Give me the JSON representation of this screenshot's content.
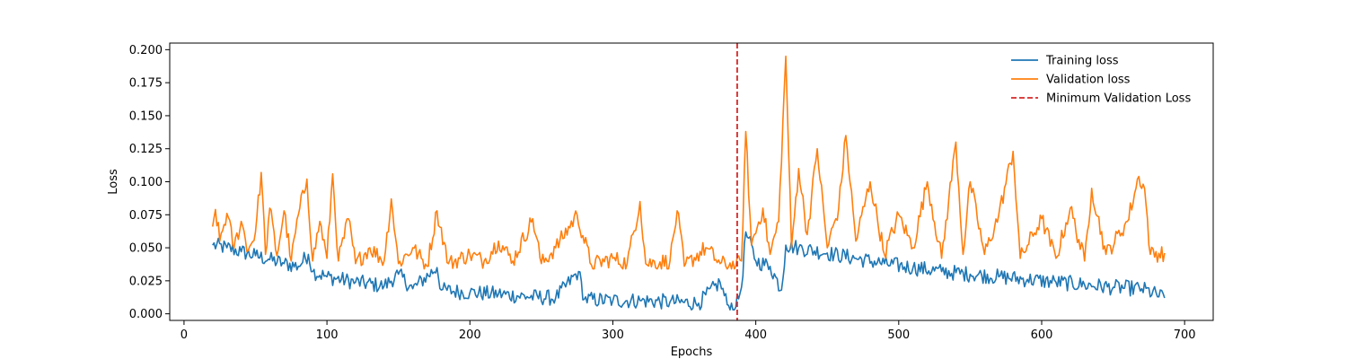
{
  "chart_data": {
    "type": "line",
    "title": "",
    "xlabel": "Epochs",
    "ylabel": "Loss",
    "xlim": [
      -10,
      720
    ],
    "ylim": [
      -0.005,
      0.205
    ],
    "xticks": [
      0,
      100,
      200,
      300,
      400,
      500,
      600,
      700
    ],
    "yticks": [
      0.0,
      0.025,
      0.05,
      0.075,
      0.1,
      0.125,
      0.15,
      0.175,
      0.2
    ],
    "x_start": 20,
    "x_end": 686,
    "legend_position": "top-right",
    "legend_frame": false,
    "grid": false,
    "series": [
      {
        "name": "Training loss",
        "color": "#1f77b4",
        "style": "solid",
        "points": [
          [
            20,
            0.052
          ],
          [
            30,
            0.05
          ],
          [
            40,
            0.047
          ],
          [
            50,
            0.044
          ],
          [
            60,
            0.041
          ],
          [
            70,
            0.038
          ],
          [
            80,
            0.036
          ],
          [
            87,
            0.045
          ],
          [
            90,
            0.032
          ],
          [
            100,
            0.028
          ],
          [
            120,
            0.024
          ],
          [
            140,
            0.021
          ],
          [
            150,
            0.03
          ],
          [
            160,
            0.019
          ],
          [
            177,
            0.035
          ],
          [
            180,
            0.018
          ],
          [
            200,
            0.016
          ],
          [
            220,
            0.015
          ],
          [
            240,
            0.013
          ],
          [
            260,
            0.012
          ],
          [
            276,
            0.032
          ],
          [
            280,
            0.011
          ],
          [
            300,
            0.01
          ],
          [
            320,
            0.01
          ],
          [
            340,
            0.009
          ],
          [
            360,
            0.008
          ],
          [
            375,
            0.024
          ],
          [
            380,
            0.007
          ],
          [
            386,
            0.005
          ],
          [
            390,
            0.02
          ],
          [
            393,
            0.062
          ],
          [
            400,
            0.04
          ],
          [
            410,
            0.036
          ],
          [
            418,
            0.018
          ],
          [
            421,
            0.052
          ],
          [
            430,
            0.05
          ],
          [
            450,
            0.046
          ],
          [
            470,
            0.042
          ],
          [
            490,
            0.038
          ],
          [
            510,
            0.035
          ],
          [
            530,
            0.032
          ],
          [
            550,
            0.03
          ],
          [
            570,
            0.028
          ],
          [
            590,
            0.026
          ],
          [
            610,
            0.024
          ],
          [
            630,
            0.022
          ],
          [
            650,
            0.02
          ],
          [
            670,
            0.019
          ],
          [
            686,
            0.012
          ]
        ]
      },
      {
        "name": "Validation loss",
        "color": "#ff7f0e",
        "style": "solid",
        "points": [
          [
            20,
            0.066
          ],
          [
            22,
            0.079
          ],
          [
            25,
            0.055
          ],
          [
            30,
            0.076
          ],
          [
            35,
            0.05
          ],
          [
            40,
            0.07
          ],
          [
            45,
            0.048
          ],
          [
            50,
            0.062
          ],
          [
            54,
            0.107
          ],
          [
            57,
            0.045
          ],
          [
            60,
            0.08
          ],
          [
            65,
            0.044
          ],
          [
            70,
            0.078
          ],
          [
            75,
            0.04
          ],
          [
            80,
            0.075
          ],
          [
            86,
            0.102
          ],
          [
            90,
            0.04
          ],
          [
            95,
            0.07
          ],
          [
            100,
            0.042
          ],
          [
            104,
            0.106
          ],
          [
            108,
            0.04
          ],
          [
            115,
            0.072
          ],
          [
            120,
            0.038
          ],
          [
            130,
            0.05
          ],
          [
            140,
            0.04
          ],
          [
            145,
            0.087
          ],
          [
            150,
            0.038
          ],
          [
            160,
            0.05
          ],
          [
            170,
            0.036
          ],
          [
            177,
            0.078
          ],
          [
            185,
            0.038
          ],
          [
            200,
            0.045
          ],
          [
            210,
            0.04
          ],
          [
            220,
            0.055
          ],
          [
            230,
            0.04
          ],
          [
            244,
            0.072
          ],
          [
            250,
            0.038
          ],
          [
            260,
            0.05
          ],
          [
            275,
            0.075
          ],
          [
            285,
            0.037
          ],
          [
            300,
            0.042
          ],
          [
            310,
            0.038
          ],
          [
            319,
            0.085
          ],
          [
            323,
            0.038
          ],
          [
            340,
            0.04
          ],
          [
            345,
            0.078
          ],
          [
            350,
            0.036
          ],
          [
            365,
            0.05
          ],
          [
            375,
            0.038
          ],
          [
            386,
            0.036
          ],
          [
            390,
            0.04
          ],
          [
            393,
            0.138
          ],
          [
            397,
            0.052
          ],
          [
            405,
            0.08
          ],
          [
            410,
            0.045
          ],
          [
            416,
            0.07
          ],
          [
            421,
            0.195
          ],
          [
            425,
            0.05
          ],
          [
            430,
            0.11
          ],
          [
            436,
            0.06
          ],
          [
            443,
            0.125
          ],
          [
            450,
            0.05
          ],
          [
            458,
            0.08
          ],
          [
            463,
            0.135
          ],
          [
            470,
            0.055
          ],
          [
            480,
            0.1
          ],
          [
            490,
            0.045
          ],
          [
            500,
            0.075
          ],
          [
            510,
            0.05
          ],
          [
            520,
            0.1
          ],
          [
            530,
            0.042
          ],
          [
            540,
            0.13
          ],
          [
            545,
            0.045
          ],
          [
            550,
            0.1
          ],
          [
            560,
            0.045
          ],
          [
            570,
            0.075
          ],
          [
            580,
            0.123
          ],
          [
            585,
            0.042
          ],
          [
            600,
            0.072
          ],
          [
            610,
            0.042
          ],
          [
            620,
            0.08
          ],
          [
            630,
            0.04
          ],
          [
            635,
            0.095
          ],
          [
            645,
            0.045
          ],
          [
            660,
            0.07
          ],
          [
            668,
            0.104
          ],
          [
            672,
            0.095
          ],
          [
            676,
            0.045
          ],
          [
            686,
            0.046
          ]
        ]
      }
    ],
    "markers": [
      {
        "name": "Minimum Validation Loss",
        "x": 387,
        "color": "#d62728",
        "style": "dashed"
      }
    ]
  }
}
